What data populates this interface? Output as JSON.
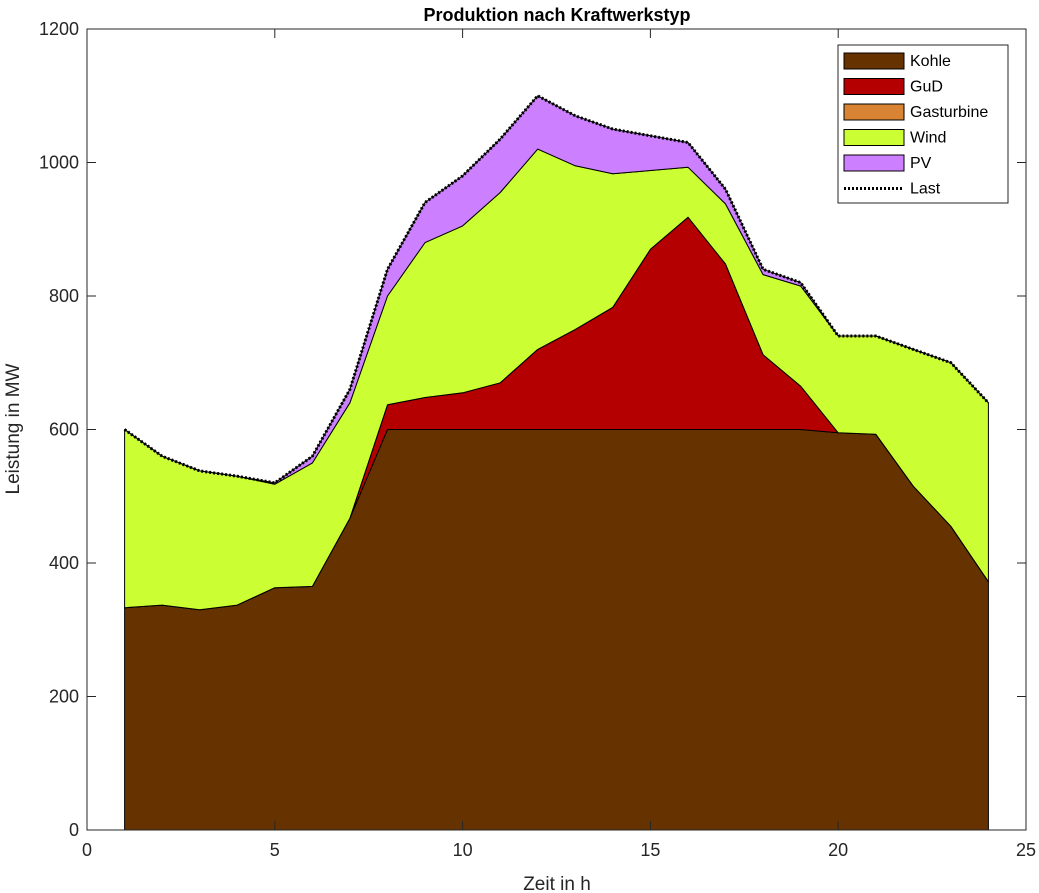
{
  "chart_data": {
    "type": "area",
    "title": "Produktion nach Kraftwerkstyp",
    "xlabel": "Zeit in h",
    "ylabel": "Leistung in MW",
    "xlim": [
      0,
      25
    ],
    "ylim": [
      0,
      1200
    ],
    "xticks": [
      0,
      5,
      10,
      15,
      20,
      25
    ],
    "yticks": [
      0,
      200,
      400,
      600,
      800,
      1000,
      1200
    ],
    "grid": false,
    "legend_position": "top-right",
    "stacked": true,
    "x": [
      1,
      2,
      3,
      4,
      5,
      6,
      7,
      8,
      9,
      10,
      11,
      12,
      13,
      14,
      15,
      16,
      17,
      18,
      19,
      20,
      21,
      22,
      23,
      24
    ],
    "series": [
      {
        "name": "Kohle",
        "color": "#663300",
        "values": [
          333,
          337,
          330,
          337,
          363,
          365,
          467,
          600,
          600,
          600,
          600,
          600,
          600,
          600,
          600,
          600,
          600,
          600,
          600,
          595,
          593,
          515,
          455,
          372
        ]
      },
      {
        "name": "GuD",
        "color": "#B40000",
        "values": [
          0,
          0,
          0,
          0,
          0,
          0,
          0,
          37,
          48,
          55,
          70,
          120,
          150,
          183,
          270,
          318,
          248,
          112,
          65,
          0,
          0,
          0,
          0,
          0
        ]
      },
      {
        "name": "Gasturbine",
        "color": "#D98435",
        "values": [
          0,
          0,
          0,
          0,
          0,
          0,
          0,
          0,
          0,
          0,
          0,
          0,
          0,
          0,
          0,
          0,
          0,
          0,
          0,
          0,
          0,
          0,
          0,
          0
        ]
      },
      {
        "name": "Wind",
        "color": "#CCFF33",
        "values": [
          267,
          223,
          208,
          193,
          155,
          185,
          173,
          163,
          232,
          250,
          285,
          300,
          245,
          200,
          118,
          75,
          90,
          120,
          150,
          145,
          147,
          205,
          245,
          268
        ]
      },
      {
        "name": "PV",
        "color": "#CC80FF",
        "values": [
          0,
          0,
          0,
          0,
          2,
          10,
          20,
          40,
          60,
          75,
          80,
          80,
          75,
          67,
          52,
          37,
          22,
          8,
          5,
          0,
          0,
          0,
          0,
          0
        ]
      }
    ],
    "line_series": [
      {
        "name": "Last",
        "style": "dotted",
        "color": "#000000",
        "values": [
          600,
          560,
          538,
          530,
          520,
          560,
          660,
          840,
          940,
          980,
          1035,
          1100,
          1070,
          1050,
          1040,
          1030,
          960,
          840,
          820,
          740,
          740,
          720,
          700,
          640
        ]
      }
    ]
  }
}
